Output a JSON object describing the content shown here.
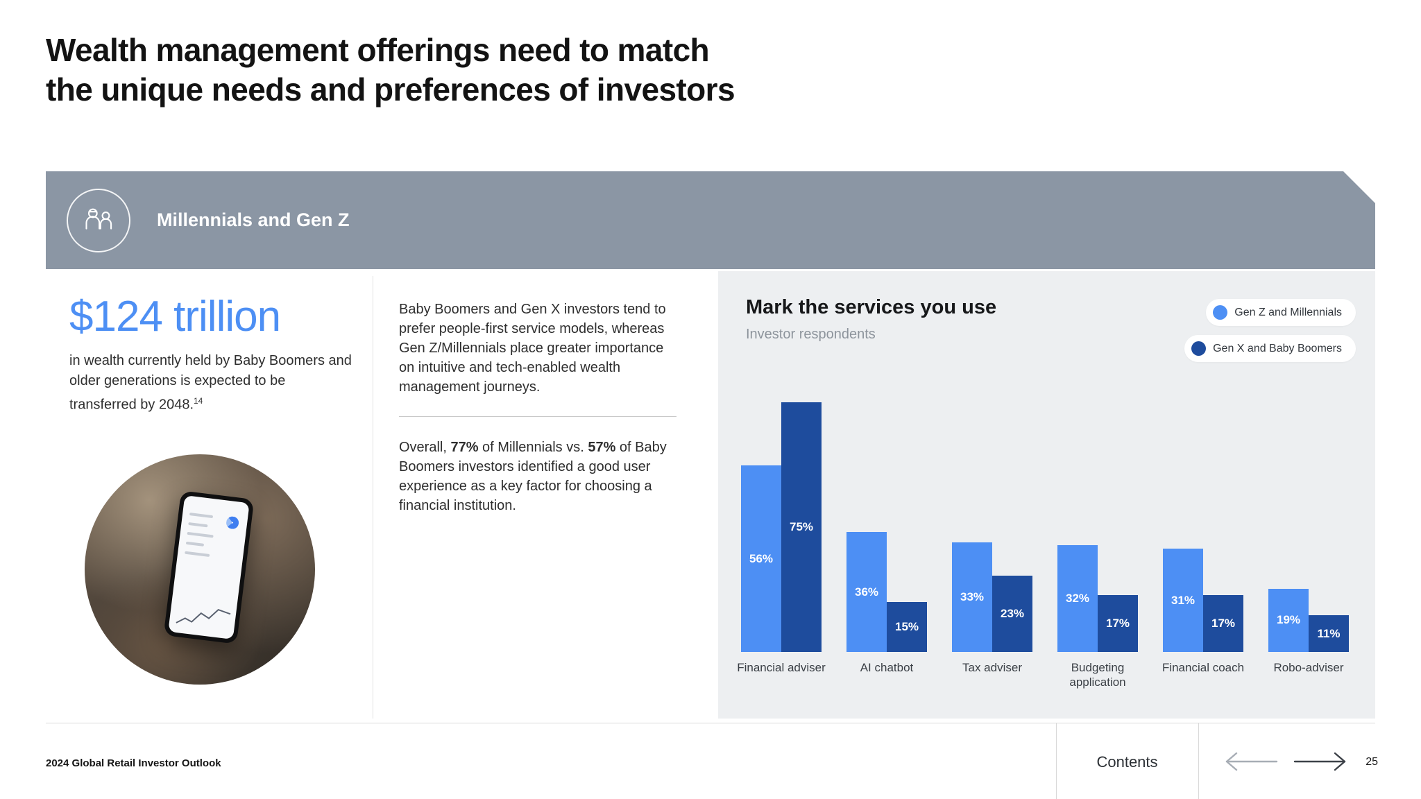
{
  "slide": {
    "title_line1": "Wealth management offerings need to match",
    "title_line2": "the unique needs and preferences of investors"
  },
  "banner": {
    "label": "Millennials and Gen Z",
    "icon": "people-icon",
    "background_color": "#8b96a4"
  },
  "stat": {
    "headline": "$124 trillion",
    "description": "in wealth currently held by Baby Boomers and older generations is expected to be transferred by 2048.",
    "footnote_marker": "14",
    "accent_color": "#4d8ff4"
  },
  "commentary": {
    "paragraph1": "Baby Boomers and Gen X investors tend to prefer people-first service models, whereas Gen Z/Millennials place greater importance on intuitive and tech-enabled wealth management journeys.",
    "paragraph2": {
      "prefix": "Overall, ",
      "stat1": "77%",
      "middle": " of Millennials vs. ",
      "stat2": "57%",
      "suffix": " of Baby Boomers investors identified a good user experience as a key factor for choosing a financial institution."
    }
  },
  "chart": {
    "title": "Mark the services you use",
    "subtitle": "Investor respondents"
  },
  "chart_data": {
    "type": "bar",
    "title": "Mark the services you use",
    "subtitle": "Investor respondents",
    "categories": [
      "Financial adviser",
      "AI chatbot",
      "Tax adviser",
      "Budgeting application",
      "Financial coach",
      "Robo-adviser"
    ],
    "series": [
      {
        "name": "Gen Z and Millennials",
        "color": "#4d8ff4",
        "values": [
          56,
          36,
          33,
          32,
          31,
          19
        ]
      },
      {
        "name": "Gen X and Baby Boomers",
        "color": "#1e4c9d",
        "values": [
          75,
          15,
          23,
          17,
          17,
          11
        ]
      }
    ],
    "value_suffix": "%",
    "ylim": [
      0,
      80
    ],
    "grid": false,
    "legend_position": "top-right",
    "bar_value_labels": "inside-center",
    "panel_background": "#edeff1"
  },
  "footer": {
    "source": "2024 Global Retail Investor Outlook",
    "contents_label": "Contents",
    "page_number": "25",
    "icons": [
      "arrow-left-icon",
      "arrow-right-icon"
    ]
  }
}
